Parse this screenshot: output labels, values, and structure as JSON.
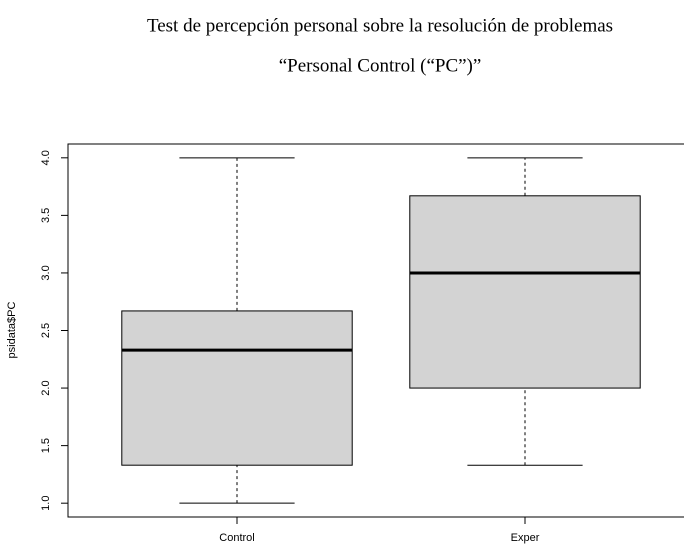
{
  "chart_data": {
    "type": "boxplot",
    "title": "Test de percepción personal sobre la resolución de problemas",
    "subtitle": "“Personal Control (“PC”)”",
    "y_label": "psidata$PC",
    "categories": [
      "Control",
      "Exper"
    ],
    "boxes": [
      {
        "min": 1.0,
        "q1": 1.33,
        "median": 2.33,
        "q3": 2.67,
        "max": 4.0
      },
      {
        "min": 1.33,
        "q1": 2.0,
        "median": 3.0,
        "q3": 3.67,
        "max": 4.0
      }
    ],
    "color": "#d3d3d3",
    "ylim": [
      0.88,
      4.12
    ],
    "yticks": [
      {
        "value": 1,
        "label": "1.0"
      },
      {
        "value": 1.5,
        "label": "1.5"
      },
      {
        "value": 2,
        "label": "2.0"
      },
      {
        "value": 2.5,
        "label": "2.5"
      },
      {
        "value": 3,
        "label": "3.0"
      },
      {
        "value": 3.5,
        "label": "3.5"
      },
      {
        "value": 4,
        "label": "4.0"
      }
    ]
  }
}
